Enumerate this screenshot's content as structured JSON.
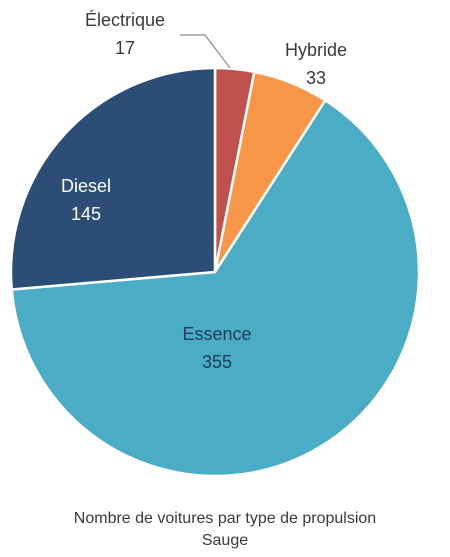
{
  "chart_data": {
    "type": "pie",
    "caption": [
      "Nombre de voitures par type de propulsion",
      "Sauge"
    ],
    "slices": [
      {
        "label": "Électrique",
        "value": 17,
        "color": "#c0504d"
      },
      {
        "label": "Hybride",
        "value": 33,
        "color": "#f79646"
      },
      {
        "label": "Essence",
        "value": 355,
        "color": "#4bacc6"
      },
      {
        "label": "Diesel",
        "value": 145,
        "color": "#2c4d75"
      }
    ],
    "start_angle_deg": 0,
    "direction": "clockwise",
    "legend": "none"
  }
}
